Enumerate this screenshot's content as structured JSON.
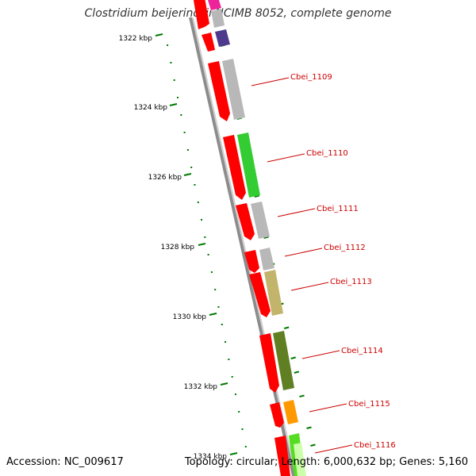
{
  "title": "Clostridium beijerinckii NCIMB 8052, complete genome",
  "accession": "Accession: NC_009617",
  "topology": "Topology: circular; Length: 6,000,632 bp; Genes: 5,160",
  "colors": {
    "cds_arrow": "#ff0000",
    "backbone": "#8c8c8c",
    "tick": "#007a00",
    "label_text": "#cc0000",
    "leader": "#cc0000",
    "feature_grey": "#b8b8b8",
    "feature_green": "#33cc33",
    "feature_khaki": "#c2b46a",
    "feature_olive": "#5f7f22",
    "feature_orange": "#ff9900",
    "feature_lime": "#55dd22",
    "feature_purple": "#4d3a8c",
    "feature_magenta": "#ee2299"
  },
  "scale_labels": [
    "1322 kbp",
    "1324 kbp",
    "1326 kbp",
    "1328 kbp",
    "1330 kbp",
    "1332 kbp",
    "1334 kbp"
  ],
  "gene_labels": [
    "Cbei_1109",
    "Cbei_1110",
    "Cbei_1111",
    "Cbei_1112",
    "Cbei_1113",
    "Cbei_1114",
    "Cbei_1115",
    "Cbei_1116"
  ]
}
